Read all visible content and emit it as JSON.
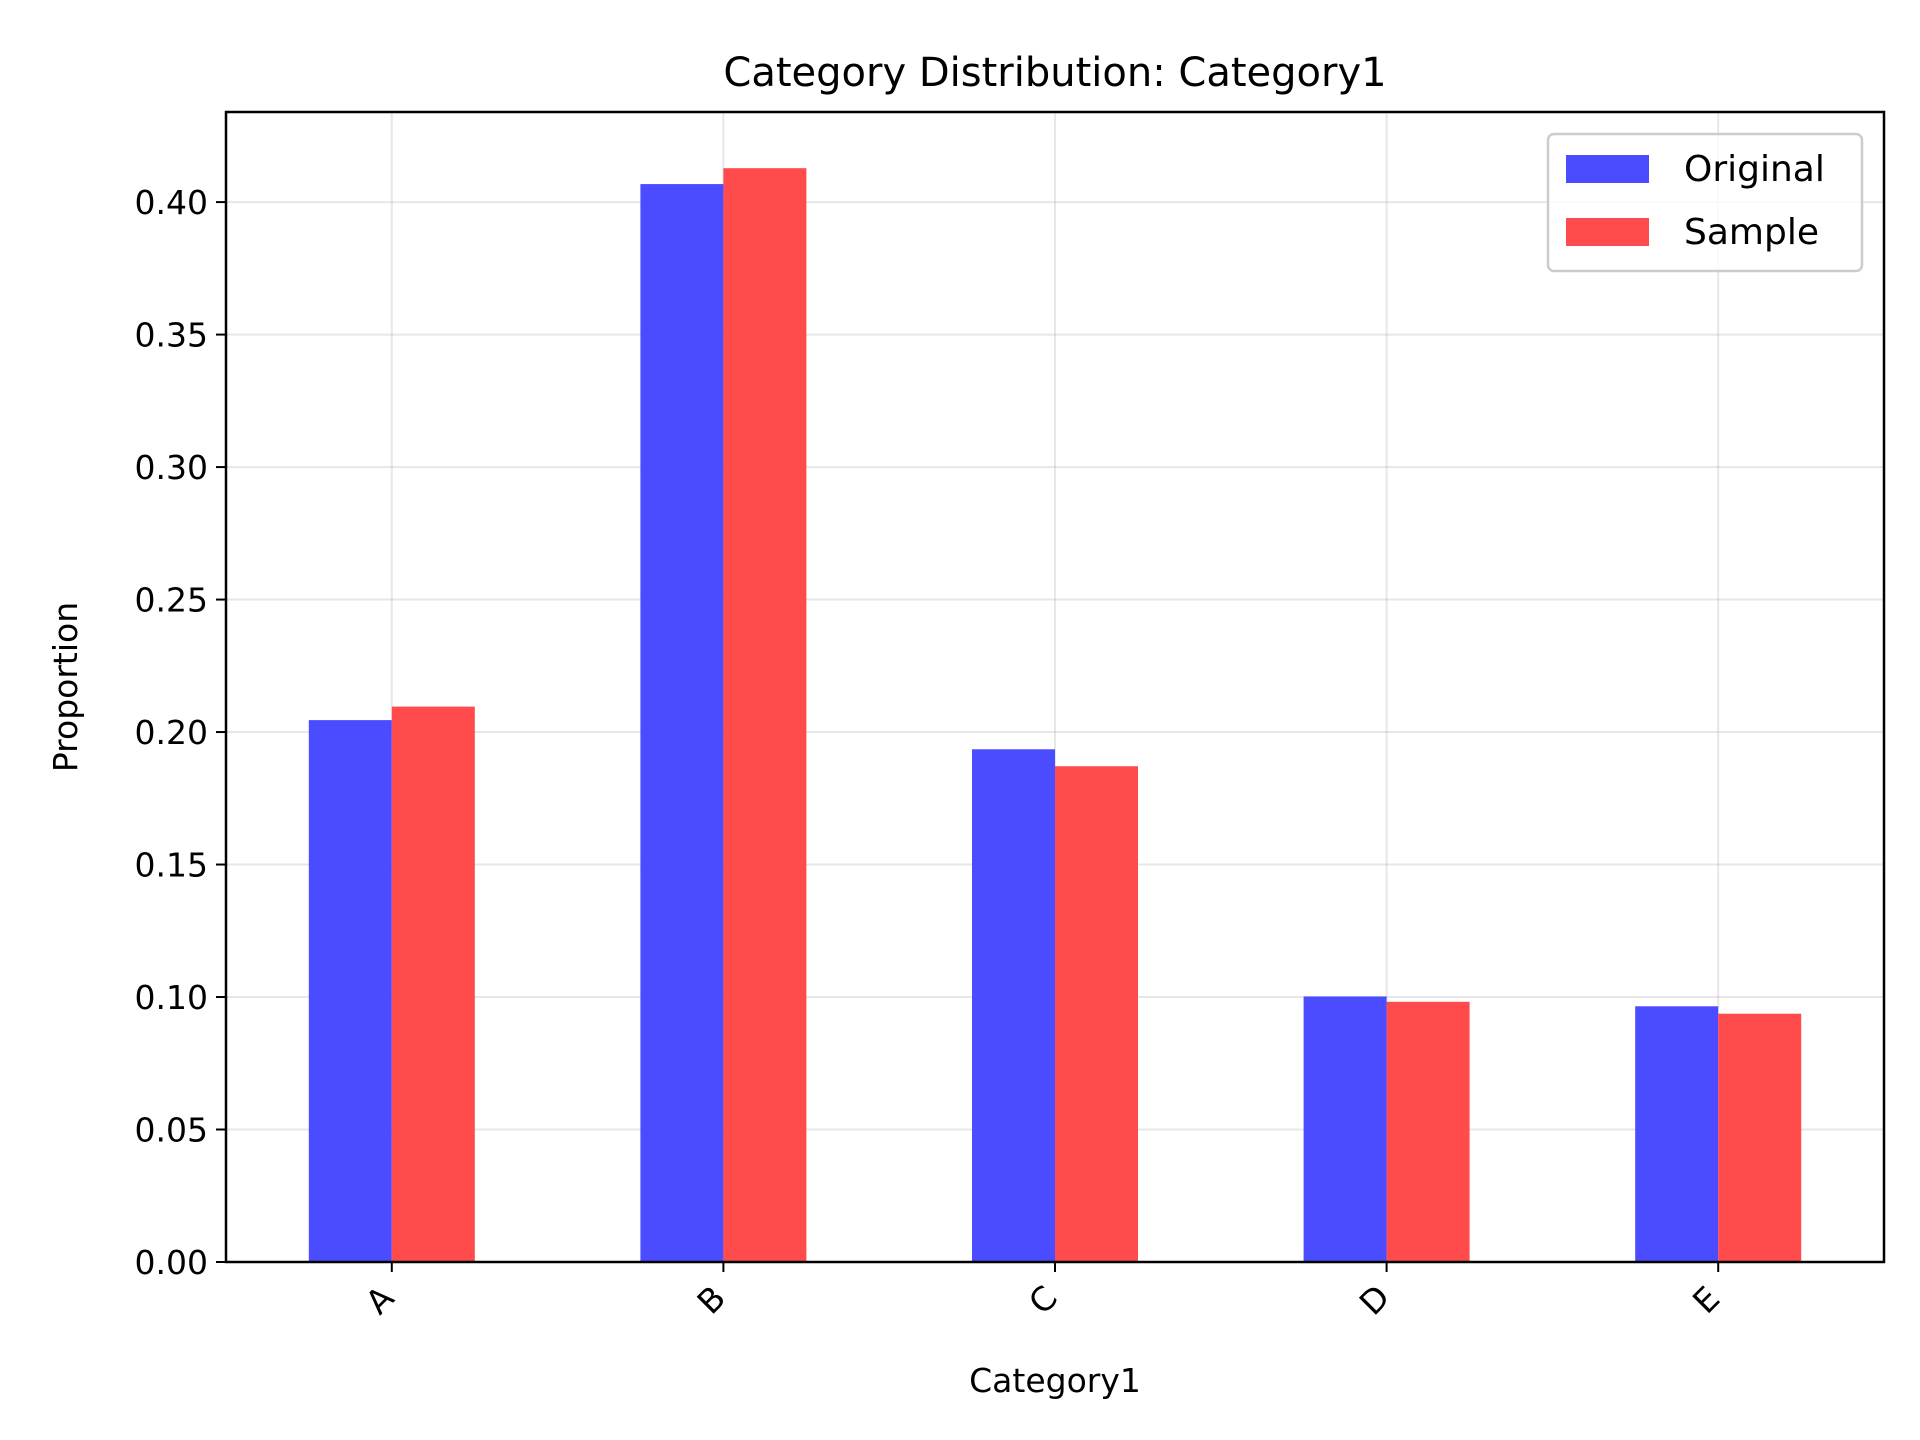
{
  "chart_data": {
    "type": "bar",
    "title": "Category Distribution: Category1",
    "xlabel": "Category1",
    "ylabel": "Proportion",
    "categories": [
      "A",
      "B",
      "C",
      "D",
      "E"
    ],
    "series": [
      {
        "name": "Original",
        "color": "#4b4bff",
        "values": [
          0.2045,
          0.4068,
          0.1935,
          0.1002,
          0.0965
        ]
      },
      {
        "name": "Sample",
        "color": "#ff4b4b",
        "values": [
          0.2096,
          0.4128,
          0.1871,
          0.0982,
          0.0937
        ]
      }
    ],
    "ylim": [
      0,
      0.434
    ],
    "yticks": [
      0.0,
      0.05,
      0.1,
      0.15,
      0.2,
      0.25,
      0.3,
      0.35,
      0.4
    ],
    "ytick_labels": [
      "0.00",
      "0.05",
      "0.10",
      "0.15",
      "0.20",
      "0.25",
      "0.30",
      "0.35",
      "0.40"
    ],
    "grid": true,
    "legend_position": "top-right",
    "x_tick_rotation": "45 degrees"
  }
}
